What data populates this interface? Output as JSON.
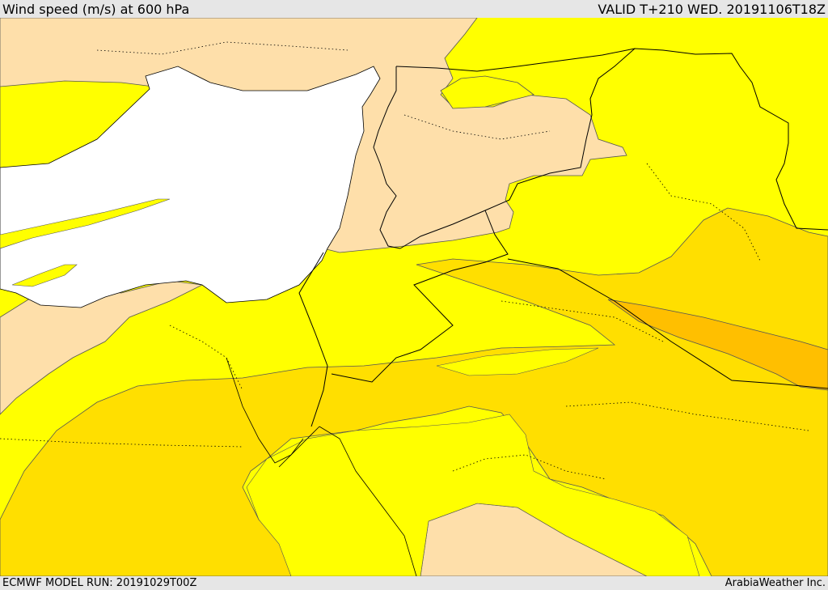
{
  "header": {
    "title": "Wind speed (m/s) at 600 hPa",
    "valid": "VALID T+210 WED. 20191106T18Z"
  },
  "footer": {
    "model_run": "ECMWF MODEL RUN: 20191029T00Z",
    "credit": "ArabiaWeather Inc."
  },
  "colors": {
    "band_low": "#fedfaa",
    "band_mid": "#ffff00",
    "band_high": "#ffdf00",
    "band_higher": "#ffbf00",
    "sea": "#ffffff",
    "border": "#000000",
    "contour": "#555555"
  }
}
